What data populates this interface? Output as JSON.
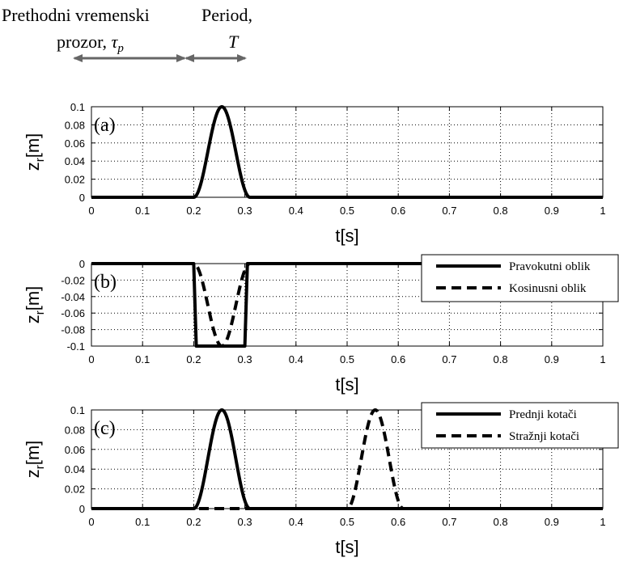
{
  "header": {
    "window_line1": "Prethodni vremenski",
    "window_line2": "prozor, ",
    "window_symbol": "τ",
    "window_subscript": "p",
    "period_line1": "Period,",
    "period_line2": "T",
    "arrow_color": "#666666"
  },
  "chart_data": [
    {
      "type": "line",
      "panel_label": "(a)",
      "xlabel": "t[s]",
      "ylabel": "z",
      "ylabel_sub": "r",
      "ylabel_unit": "[m]",
      "xlim": [
        0,
        1
      ],
      "ylim": [
        0,
        0.1
      ],
      "xticks": [
        0,
        0.1,
        0.2,
        0.3,
        0.4,
        0.5,
        0.6,
        0.7,
        0.8,
        0.9,
        1
      ],
      "xtick_labels": [
        "0",
        "0.1",
        "0.2",
        "0.3",
        "0.4",
        "0.5",
        "0.6",
        "0.7",
        "0.8",
        "0.9",
        "1"
      ],
      "yticks": [
        0,
        0.02,
        0.04,
        0.06,
        0.08,
        0.1
      ],
      "ytick_labels": [
        "0",
        "0.02",
        "0.04",
        "0.06",
        "0.08",
        "0.1"
      ],
      "grid": true,
      "legend": [],
      "series": [
        {
          "style": "solid",
          "kind": "cosine_bump",
          "start": 0.2,
          "end": 0.31,
          "amplitude": 0.1
        }
      ]
    },
    {
      "type": "line",
      "panel_label": "(b)",
      "xlabel": "t[s]",
      "ylabel": "z",
      "ylabel_sub": "r",
      "ylabel_unit": "[m]",
      "xlim": [
        0,
        1
      ],
      "ylim": [
        -0.1,
        0
      ],
      "xticks": [
        0,
        0.1,
        0.2,
        0.3,
        0.4,
        0.5,
        0.6,
        0.7,
        0.8,
        0.9,
        1
      ],
      "xtick_labels": [
        "0",
        "0.1",
        "0.2",
        "0.3",
        "0.4",
        "0.5",
        "0.6",
        "0.7",
        "0.8",
        "0.9",
        "1"
      ],
      "yticks": [
        0,
        -0.02,
        -0.04,
        -0.06,
        -0.08,
        -0.1
      ],
      "ytick_labels": [
        "0",
        "-0.02",
        "-0.04",
        "-0.06",
        "-0.08",
        "-0.1"
      ],
      "grid": true,
      "legend_position": "top-right",
      "legend": [
        {
          "label": "Pravokutni oblik",
          "style": "solid"
        },
        {
          "label": "Kosinusni oblik",
          "style": "dashed"
        }
      ],
      "series": [
        {
          "name": "Pravokutni oblik",
          "style": "solid",
          "kind": "trapezoid",
          "points": [
            [
              0,
              0
            ],
            [
              0.2,
              0
            ],
            [
              0.205,
              -0.1
            ],
            [
              0.3,
              -0.1
            ],
            [
              0.305,
              0
            ],
            [
              1,
              0
            ]
          ]
        },
        {
          "name": "Kosinusni oblik",
          "style": "dashed",
          "kind": "cosine_bump",
          "start": 0.2,
          "end": 0.31,
          "amplitude": -0.1
        }
      ]
    },
    {
      "type": "line",
      "panel_label": "(c)",
      "xlabel": "t[s]",
      "ylabel": "z",
      "ylabel_sub": "r",
      "ylabel_unit": "[m]",
      "xlim": [
        0,
        1
      ],
      "ylim": [
        0,
        0.1
      ],
      "xticks": [
        0,
        0.1,
        0.2,
        0.3,
        0.4,
        0.5,
        0.6,
        0.7,
        0.8,
        0.9,
        1
      ],
      "xtick_labels": [
        "0",
        "0.1",
        "0.2",
        "0.3",
        "0.4",
        "0.5",
        "0.6",
        "0.7",
        "0.8",
        "0.9",
        "1"
      ],
      "yticks": [
        0,
        0.02,
        0.04,
        0.06,
        0.08,
        0.1
      ],
      "ytick_labels": [
        "0",
        "0.02",
        "0.04",
        "0.06",
        "0.08",
        "0.1"
      ],
      "grid": true,
      "legend_position": "top-right",
      "legend": [
        {
          "label": "Prednji kotači",
          "style": "solid"
        },
        {
          "label": "Stražnji kotači",
          "style": "dashed"
        }
      ],
      "series": [
        {
          "name": "Prednji kotači",
          "style": "solid",
          "kind": "cosine_bump",
          "start": 0.2,
          "end": 0.31,
          "amplitude": 0.1
        },
        {
          "name": "Stražnji kotači",
          "style": "dashed",
          "kind": "cosine_bump",
          "start": 0.5,
          "end": 0.61,
          "amplitude": 0.1
        }
      ]
    }
  ]
}
